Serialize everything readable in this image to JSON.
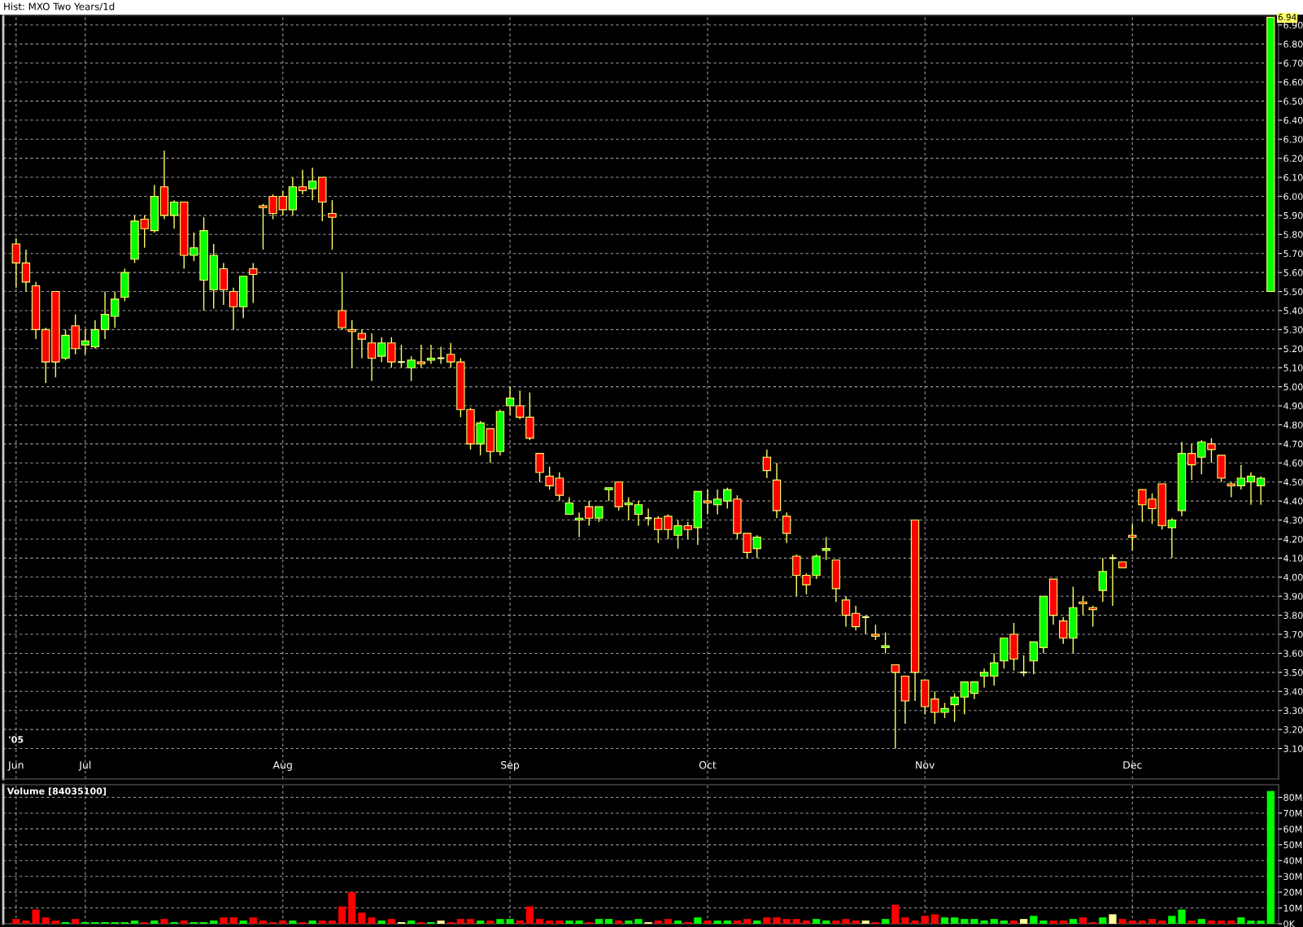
{
  "chart_data": [
    {
      "type": "candlestick",
      "title": "Hist: MXO Two Years/1d",
      "categories": [
        "Jun",
        null,
        null,
        null,
        null,
        null,
        null,
        "Jul",
        null,
        null,
        null,
        null,
        null,
        null,
        null,
        null,
        null,
        null,
        null,
        null,
        null,
        null,
        null,
        null,
        null,
        null,
        null,
        "Aug",
        null,
        null,
        null,
        null,
        null,
        null,
        null,
        null,
        null,
        null,
        null,
        null,
        null,
        null,
        null,
        null,
        null,
        null,
        null,
        null,
        null,
        null,
        "Sep",
        null,
        null,
        null,
        null,
        null,
        null,
        null,
        null,
        null,
        null,
        null,
        null,
        null,
        null,
        null,
        null,
        null,
        null,
        null,
        "Oct",
        null,
        null,
        null,
        null,
        null,
        null,
        null,
        null,
        null,
        null,
        null,
        null,
        null,
        null,
        null,
        null,
        null,
        null,
        null,
        null,
        null,
        "Nov",
        null,
        null,
        null,
        null,
        null,
        null,
        null,
        null,
        null,
        null,
        null,
        null,
        null,
        null,
        null,
        null,
        null,
        null,
        null,
        null,
        "Dec",
        null,
        null,
        null,
        null,
        null,
        null,
        null,
        null,
        null,
        null,
        null,
        null,
        null,
        null
      ],
      "ohlc": [
        [
          5.75,
          5.78,
          5.52,
          5.65
        ],
        [
          5.65,
          5.72,
          5.5,
          5.55
        ],
        [
          5.53,
          5.55,
          5.25,
          5.3
        ],
        [
          5.3,
          5.31,
          5.02,
          5.13
        ],
        [
          5.5,
          5.5,
          5.05,
          5.13
        ],
        [
          5.15,
          5.3,
          5.14,
          5.27
        ],
        [
          5.32,
          5.38,
          5.17,
          5.2
        ],
        [
          5.22,
          5.3,
          5.17,
          5.24
        ],
        [
          5.21,
          5.35,
          5.2,
          5.3
        ],
        [
          5.3,
          5.5,
          5.25,
          5.38
        ],
        [
          5.37,
          5.5,
          5.31,
          5.46
        ],
        [
          5.47,
          5.62,
          5.45,
          5.6
        ],
        [
          5.67,
          5.9,
          5.65,
          5.87
        ],
        [
          5.88,
          5.9,
          5.73,
          5.83
        ],
        [
          5.82,
          6.06,
          5.81,
          6.0
        ],
        [
          6.05,
          6.24,
          5.88,
          5.9
        ],
        [
          5.9,
          5.98,
          5.83,
          5.97
        ],
        [
          5.97,
          5.97,
          5.62,
          5.69
        ],
        [
          5.69,
          5.81,
          5.66,
          5.73
        ],
        [
          5.56,
          5.89,
          5.4,
          5.82
        ],
        [
          5.51,
          5.75,
          5.41,
          5.69
        ],
        [
          5.62,
          5.65,
          5.43,
          5.51
        ],
        [
          5.5,
          5.52,
          5.3,
          5.42
        ],
        [
          5.42,
          5.58,
          5.36,
          5.58
        ],
        [
          5.62,
          5.65,
          5.44,
          5.59
        ],
        [
          5.95,
          5.96,
          5.72,
          5.94
        ],
        [
          6.0,
          6.01,
          5.88,
          5.91
        ],
        [
          6.0,
          6.03,
          5.9,
          5.93
        ],
        [
          5.93,
          6.1,
          5.9,
          6.05
        ],
        [
          6.05,
          6.14,
          6.01,
          6.03
        ],
        [
          6.04,
          6.15,
          5.98,
          6.08
        ],
        [
          6.1,
          6.1,
          5.87,
          5.97
        ],
        [
          5.91,
          5.98,
          5.72,
          5.89
        ],
        [
          5.4,
          5.6,
          5.3,
          5.31
        ],
        [
          5.3,
          5.35,
          5.1,
          5.29
        ],
        [
          5.28,
          5.3,
          5.15,
          5.25
        ],
        [
          5.23,
          5.28,
          5.03,
          5.15
        ],
        [
          5.16,
          5.26,
          5.13,
          5.23
        ],
        [
          5.23,
          5.26,
          5.1,
          5.13
        ],
        [
          5.13,
          5.22,
          5.1,
          5.13
        ],
        [
          5.1,
          5.16,
          5.03,
          5.14
        ],
        [
          5.13,
          5.22,
          5.1,
          5.12
        ],
        [
          5.14,
          5.22,
          5.12,
          5.15
        ],
        [
          5.15,
          5.21,
          5.12,
          5.15
        ],
        [
          5.17,
          5.23,
          5.1,
          5.13
        ],
        [
          5.13,
          5.15,
          4.84,
          4.88
        ],
        [
          4.88,
          4.89,
          4.67,
          4.7
        ],
        [
          4.7,
          4.82,
          4.64,
          4.81
        ],
        [
          4.78,
          4.78,
          4.6,
          4.66
        ],
        [
          4.66,
          4.88,
          4.64,
          4.87
        ],
        [
          4.9,
          5.0,
          4.85,
          4.94
        ],
        [
          4.9,
          4.98,
          4.83,
          4.84
        ],
        [
          4.84,
          4.97,
          4.72,
          4.73
        ],
        [
          4.65,
          4.65,
          4.5,
          4.55
        ],
        [
          4.53,
          4.58,
          4.46,
          4.48
        ],
        [
          4.52,
          4.55,
          4.4,
          4.43
        ],
        [
          4.33,
          4.42,
          4.33,
          4.39
        ],
        [
          4.3,
          4.34,
          4.21,
          4.31
        ],
        [
          4.37,
          4.4,
          4.27,
          4.31
        ],
        [
          4.31,
          4.37,
          4.29,
          4.37
        ],
        [
          4.46,
          4.47,
          4.4,
          4.47
        ],
        [
          4.5,
          4.5,
          4.35,
          4.37
        ],
        [
          4.38,
          4.42,
          4.3,
          4.39
        ],
        [
          4.33,
          4.4,
          4.27,
          4.38
        ],
        [
          4.31,
          4.36,
          4.27,
          4.31
        ],
        [
          4.31,
          4.32,
          4.18,
          4.25
        ],
        [
          4.32,
          4.33,
          4.2,
          4.25
        ],
        [
          4.22,
          4.3,
          4.15,
          4.27
        ],
        [
          4.27,
          4.29,
          4.2,
          4.25
        ],
        [
          4.26,
          4.45,
          4.17,
          4.45
        ],
        [
          4.4,
          4.46,
          4.33,
          4.39
        ],
        [
          4.38,
          4.46,
          4.33,
          4.41
        ],
        [
          4.4,
          4.47,
          4.36,
          4.46
        ],
        [
          4.41,
          4.43,
          4.2,
          4.23
        ],
        [
          4.23,
          4.23,
          4.1,
          4.13
        ],
        [
          4.15,
          4.22,
          4.1,
          4.21
        ],
        [
          4.63,
          4.67,
          4.52,
          4.56
        ],
        [
          4.51,
          4.6,
          4.31,
          4.35
        ],
        [
          4.32,
          4.34,
          4.18,
          4.23
        ],
        [
          4.11,
          4.12,
          3.9,
          4.01
        ],
        [
          4.01,
          4.02,
          3.91,
          3.96
        ],
        [
          4.01,
          4.12,
          3.99,
          4.11
        ],
        [
          4.14,
          4.21,
          4.09,
          4.15
        ],
        [
          4.09,
          4.09,
          3.87,
          3.94
        ],
        [
          3.88,
          3.9,
          3.74,
          3.8
        ],
        [
          3.81,
          3.85,
          3.72,
          3.74
        ],
        [
          3.79,
          3.8,
          3.7,
          3.79
        ],
        [
          3.7,
          3.75,
          3.67,
          3.69
        ],
        [
          3.63,
          3.71,
          3.6,
          3.64
        ],
        [
          3.54,
          3.54,
          3.1,
          3.5
        ],
        [
          3.48,
          3.48,
          3.23,
          3.35
        ],
        [
          4.3,
          4.3,
          3.35,
          3.5
        ],
        [
          3.46,
          3.46,
          3.28,
          3.32
        ],
        [
          3.36,
          3.4,
          3.23,
          3.29
        ],
        [
          3.29,
          3.34,
          3.26,
          3.31
        ],
        [
          3.33,
          3.39,
          3.24,
          3.37
        ],
        [
          3.37,
          3.45,
          3.28,
          3.45
        ],
        [
          3.39,
          3.45,
          3.36,
          3.45
        ],
        [
          3.48,
          3.52,
          3.42,
          3.5
        ],
        [
          3.48,
          3.6,
          3.43,
          3.55
        ],
        [
          3.56,
          3.68,
          3.52,
          3.68
        ],
        [
          3.7,
          3.76,
          3.51,
          3.57
        ],
        [
          3.5,
          3.59,
          3.48,
          3.5
        ],
        [
          3.56,
          3.66,
          3.49,
          3.66
        ],
        [
          3.63,
          3.9,
          3.6,
          3.9
        ],
        [
          3.99,
          3.99,
          3.75,
          3.8
        ],
        [
          3.77,
          3.79,
          3.65,
          3.68
        ],
        [
          3.68,
          3.95,
          3.6,
          3.84
        ],
        [
          3.87,
          3.9,
          3.8,
          3.86
        ],
        [
          3.84,
          3.85,
          3.74,
          3.83
        ],
        [
          3.93,
          4.1,
          3.87,
          4.03
        ],
        [
          4.1,
          4.12,
          3.85,
          4.1
        ],
        [
          4.08,
          4.08,
          4.05,
          4.05
        ],
        [
          4.22,
          4.28,
          4.14,
          4.21
        ],
        [
          4.46,
          4.46,
          4.29,
          4.38
        ],
        [
          4.41,
          4.44,
          4.28,
          4.36
        ],
        [
          4.49,
          4.49,
          4.25,
          4.27
        ],
        [
          4.26,
          4.31,
          4.1,
          4.3
        ],
        [
          4.35,
          4.71,
          4.32,
          4.65
        ],
        [
          4.65,
          4.7,
          4.51,
          4.59
        ],
        [
          4.63,
          4.72,
          4.54,
          4.71
        ],
        [
          4.7,
          4.73,
          4.6,
          4.67
        ],
        [
          4.64,
          4.64,
          4.5,
          4.52
        ],
        [
          4.49,
          4.5,
          4.42,
          4.48
        ],
        [
          4.48,
          4.59,
          4.46,
          4.52
        ],
        [
          4.5,
          4.55,
          4.38,
          4.53
        ],
        [
          4.48,
          4.53,
          4.38,
          4.52
        ],
        [
          5.5,
          6.94,
          5.5,
          6.94
        ]
      ],
      "colors": [
        "#ff0000",
        "#ff0000",
        "#ff0000",
        "#ff0000",
        "#ff0000",
        "#00ff00",
        "#ff0000",
        "#00ff00",
        "#00ff00",
        "#00ff00",
        "#00ff00",
        "#00ff00",
        "#00ff00",
        "#ff0000",
        "#00ff00",
        "#ff0000",
        "#00ff00",
        "#ff0000",
        "#00ff00",
        "#00ff00",
        "#00ff00",
        "#ff0000",
        "#ff0000",
        "#00ff00",
        "#ff0000",
        "#ff0000",
        "#ff0000",
        "#ff0000",
        "#00ff00",
        "#ff0000",
        "#00ff00",
        "#ff0000",
        "#ff0000",
        "#ff0000",
        "#ff0000",
        "#ff0000",
        "#ff0000",
        "#00ff00",
        "#ff0000",
        "#ffff99",
        "#00ff00",
        "#ff0000",
        "#00ff00",
        "#ffff99",
        "#ff0000",
        "#ff0000",
        "#ff0000",
        "#00ff00",
        "#ff0000",
        "#00ff00",
        "#00ff00",
        "#ff0000",
        "#ff0000",
        "#ff0000",
        "#ff0000",
        "#ff0000",
        "#00ff00",
        "#00ff00",
        "#ff0000",
        "#00ff00",
        "#00ff00",
        "#ff0000",
        "#00ff00",
        "#00ff00",
        "#ffff99",
        "#ff0000",
        "#ff0000",
        "#00ff00",
        "#ff0000",
        "#00ff00",
        "#ff0000",
        "#00ff00",
        "#00ff00",
        "#ff0000",
        "#ff0000",
        "#00ff00",
        "#ff0000",
        "#ff0000",
        "#ff0000",
        "#ff0000",
        "#ff0000",
        "#00ff00",
        "#00ff00",
        "#ff0000",
        "#ff0000",
        "#ff0000",
        "#ffff99",
        "#ff0000",
        "#00ff00",
        "#ff0000",
        "#ff0000",
        "#ff0000",
        "#ff0000",
        "#ff0000",
        "#00ff00",
        "#00ff00",
        "#00ff00",
        "#00ff00",
        "#00ff00",
        "#00ff00",
        "#00ff00",
        "#ff0000",
        "#ffff99",
        "#00ff00",
        "#00ff00",
        "#ff0000",
        "#ff0000",
        "#00ff00",
        "#ff0000",
        "#ff0000",
        "#00ff00",
        "#ffff99",
        "#ff0000",
        "#ff0000",
        "#ff0000",
        "#ff0000",
        "#ff0000",
        "#00ff00",
        "#00ff00",
        "#ff0000",
        "#00ff00",
        "#ff0000",
        "#ff0000",
        "#ff0000",
        "#00ff00",
        "#00ff00",
        "#00ff00",
        "#00ff00"
      ],
      "ylim": [
        2.94,
        6.95
      ],
      "yticks": [
        {
          "value": 3.1,
          "label": "3.10"
        },
        {
          "value": 3.2,
          "label": "3.20"
        },
        {
          "value": 3.3,
          "label": "3.30"
        },
        {
          "value": 3.4,
          "label": "3.40"
        },
        {
          "value": 3.5,
          "label": "3.50"
        },
        {
          "value": 3.6,
          "label": "3.60"
        },
        {
          "value": 3.7,
          "label": "3.70"
        },
        {
          "value": 3.8,
          "label": "3.80"
        },
        {
          "value": 3.9,
          "label": "3.90"
        },
        {
          "value": 4.0,
          "label": "4.00"
        },
        {
          "value": 4.1,
          "label": "4.10"
        },
        {
          "value": 4.2,
          "label": "4.20"
        },
        {
          "value": 4.3,
          "label": "4.30"
        },
        {
          "value": 4.4,
          "label": "4.40"
        },
        {
          "value": 4.5,
          "label": "4.50"
        },
        {
          "value": 4.6,
          "label": "4.60"
        },
        {
          "value": 4.7,
          "label": "4.70"
        },
        {
          "value": 4.8,
          "label": "4.80"
        },
        {
          "value": 4.9,
          "label": "4.90"
        },
        {
          "value": 5.0,
          "label": "5.00"
        },
        {
          "value": 5.1,
          "label": "5.10"
        },
        {
          "value": 5.2,
          "label": "5.20"
        },
        {
          "value": 5.3,
          "label": "5.30"
        },
        {
          "value": 5.4,
          "label": "5.40"
        },
        {
          "value": 5.5,
          "label": "5.50"
        },
        {
          "value": 5.6,
          "label": "5.60"
        },
        {
          "value": 5.7,
          "label": "5.70"
        },
        {
          "value": 5.8,
          "label": "5.80"
        },
        {
          "value": 5.9,
          "label": "5.90"
        },
        {
          "value": 6.0,
          "label": "6.00"
        },
        {
          "value": 6.1,
          "label": "6.10"
        },
        {
          "value": 6.2,
          "label": "6.20"
        },
        {
          "value": 6.3,
          "label": "6.30"
        },
        {
          "value": 6.4,
          "label": "6.40"
        },
        {
          "value": 6.5,
          "label": "6.50"
        },
        {
          "value": 6.6,
          "label": "6.60"
        },
        {
          "value": 6.7,
          "label": "6.70"
        },
        {
          "value": 6.8,
          "label": "6.80"
        },
        {
          "value": 6.9,
          "label": "6.90"
        }
      ],
      "grid": true,
      "annotations": [
        "'05",
        "6.94"
      ]
    },
    {
      "type": "bar",
      "title": "Volume [84035100]",
      "categories": [
        null,
        null,
        null,
        null,
        null,
        null,
        null,
        null,
        null,
        null,
        null,
        null,
        null,
        null,
        null,
        null,
        null,
        null,
        null,
        null,
        null,
        null,
        null,
        null,
        null,
        null,
        null,
        null,
        null,
        null,
        null,
        null,
        null,
        null,
        null,
        null,
        null,
        null,
        null,
        null,
        null,
        null,
        null,
        null,
        null,
        null,
        null,
        null,
        null,
        null,
        null,
        null,
        null,
        null,
        null,
        null,
        null,
        null,
        null,
        null,
        null,
        null,
        null,
        null,
        null,
        null,
        null,
        null,
        null,
        null,
        null,
        null,
        null,
        null,
        null,
        null,
        null,
        null,
        null,
        null,
        null,
        null,
        null,
        null,
        null,
        null,
        null,
        null,
        null,
        null,
        null,
        null,
        null,
        null,
        null,
        null,
        null,
        null,
        null,
        null,
        null,
        null,
        null,
        null,
        null,
        null,
        null,
        null,
        null,
        null,
        null,
        null,
        null,
        null,
        null,
        null,
        null,
        null,
        null,
        null,
        null,
        null,
        null,
        null,
        null,
        null,
        null,
        null
      ],
      "values": [
        3,
        2,
        9,
        4,
        2,
        1,
        3,
        1,
        1,
        1,
        1,
        1,
        2,
        1,
        2,
        3,
        1,
        2,
        1,
        1,
        2,
        4,
        4,
        2,
        4,
        2,
        1,
        2,
        2,
        1,
        2,
        2,
        2,
        11,
        20,
        7,
        4,
        2,
        3,
        1,
        2,
        1,
        1,
        2,
        1,
        3,
        3,
        2,
        2,
        3,
        3,
        2,
        11,
        3,
        2,
        2,
        2,
        2,
        1,
        3,
        3,
        2,
        2,
        3,
        1,
        2,
        3,
        2,
        1,
        4,
        2,
        2,
        2,
        2,
        3,
        2,
        4,
        4,
        3,
        3,
        2,
        3,
        2,
        2,
        3,
        2,
        2,
        1,
        3,
        12,
        4,
        2,
        5,
        6,
        4,
        4,
        3,
        3,
        2,
        3,
        2,
        2,
        3,
        5,
        2,
        2,
        2,
        3,
        4,
        1,
        4,
        6,
        3,
        2,
        2,
        3,
        2,
        5,
        9,
        2,
        3,
        2,
        2,
        2,
        4,
        2,
        2,
        84
      ],
      "colors": [
        "#ff0000",
        "#ff0000",
        "#ff0000",
        "#ff0000",
        "#ff0000",
        "#00ff00",
        "#ff0000",
        "#00ff00",
        "#00ff00",
        "#00ff00",
        "#00ff00",
        "#00ff00",
        "#00ff00",
        "#ff0000",
        "#00ff00",
        "#ff0000",
        "#00ff00",
        "#ff0000",
        "#00ff00",
        "#00ff00",
        "#00ff00",
        "#ff0000",
        "#ff0000",
        "#00ff00",
        "#ff0000",
        "#ff0000",
        "#ff0000",
        "#ff0000",
        "#00ff00",
        "#ff0000",
        "#00ff00",
        "#ff0000",
        "#ff0000",
        "#ff0000",
        "#ff0000",
        "#ff0000",
        "#ff0000",
        "#00ff00",
        "#ff0000",
        "#ffff99",
        "#00ff00",
        "#ff0000",
        "#00ff00",
        "#ffff99",
        "#ff0000",
        "#ff0000",
        "#ff0000",
        "#00ff00",
        "#ff0000",
        "#00ff00",
        "#00ff00",
        "#ff0000",
        "#ff0000",
        "#ff0000",
        "#ff0000",
        "#ff0000",
        "#00ff00",
        "#00ff00",
        "#ff0000",
        "#00ff00",
        "#00ff00",
        "#ff0000",
        "#00ff00",
        "#00ff00",
        "#ffff99",
        "#ff0000",
        "#ff0000",
        "#00ff00",
        "#ff0000",
        "#00ff00",
        "#ff0000",
        "#00ff00",
        "#00ff00",
        "#ff0000",
        "#ff0000",
        "#00ff00",
        "#ff0000",
        "#ff0000",
        "#ff0000",
        "#ff0000",
        "#ff0000",
        "#00ff00",
        "#00ff00",
        "#ff0000",
        "#ff0000",
        "#ff0000",
        "#ffff99",
        "#ff0000",
        "#00ff00",
        "#ff0000",
        "#ff0000",
        "#ff0000",
        "#ff0000",
        "#ff0000",
        "#00ff00",
        "#00ff00",
        "#00ff00",
        "#00ff00",
        "#00ff00",
        "#00ff00",
        "#00ff00",
        "#ff0000",
        "#ffff99",
        "#00ff00",
        "#00ff00",
        "#ff0000",
        "#ff0000",
        "#00ff00",
        "#ff0000",
        "#ff0000",
        "#00ff00",
        "#ffff99",
        "#ff0000",
        "#ff0000",
        "#ff0000",
        "#ff0000",
        "#ff0000",
        "#00ff00",
        "#00ff00",
        "#ff0000",
        "#00ff00",
        "#ff0000",
        "#ff0000",
        "#ff0000",
        "#00ff00",
        "#00ff00",
        "#00ff00",
        "#00ff00"
      ],
      "ylim": [
        0,
        88
      ],
      "yticks": [
        {
          "value": 0,
          "label": "0K"
        },
        {
          "value": 10,
          "label": "10M"
        },
        {
          "value": 20,
          "label": "20M"
        },
        {
          "value": 30,
          "label": "30M"
        },
        {
          "value": 40,
          "label": "40M"
        },
        {
          "value": 50,
          "label": "50M"
        },
        {
          "value": 60,
          "label": "60M"
        },
        {
          "value": 70,
          "label": "70M"
        },
        {
          "value": 80,
          "label": "80M"
        }
      ],
      "grid": true,
      "tick_labels": "y"
    }
  ]
}
